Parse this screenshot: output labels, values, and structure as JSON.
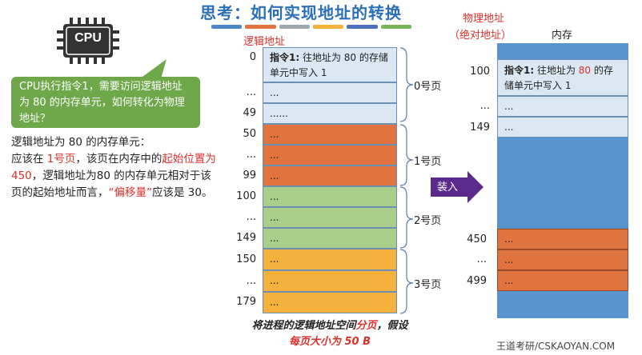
{
  "title": "思考：如何实现地址的转换",
  "title_bar_colors": [
    "#4f86c6",
    "#e0733e",
    "#9fa6ad",
    "#f6b13d",
    "#4f6fbf",
    "#7cb45a"
  ],
  "cpu": {
    "label": "CPU",
    "bubble": "CPU执行指令1，需要访问逻辑地址为 80 的内存单元，如何转化为物理地址？"
  },
  "explanation": {
    "p1": "逻辑地址为 80 的内存单元：",
    "p2a": "应该在 ",
    "page": "1号页",
    "p2b": "，该页在内存中的",
    "start": "起始位置为 450",
    "p3": "，逻辑地址为80 的内存单元相对于该页的起始地址而言，",
    "offset_label": "“偏移量”",
    "p4": "应该是 30。"
  },
  "logical": {
    "header": "逻辑地址",
    "cell0_bold": "指令1:",
    "cell0_text": " 往地址为 80 的存储单元中写入 1",
    "dots": "...",
    "six_dots": "......",
    "row_labels": [
      "0",
      "...",
      "49",
      "50",
      "...",
      "99",
      "100",
      "...",
      "149",
      "150",
      "...",
      "179"
    ],
    "pages": [
      "0号页",
      "1号页",
      "2号页",
      "3号页"
    ]
  },
  "load_label": "装入",
  "physical": {
    "header_line1": "物理地址",
    "header_line2": "（绝对地址）",
    "memory_label": "内存",
    "cell_bold": "指令1:",
    "cell_text_a": " 往地址为 ",
    "cell_text_red": "80",
    "cell_text_b": " 的存储单元中写入 1",
    "dots": "...",
    "row_labels": [
      "100",
      "...",
      "149",
      "450",
      "...",
      "499"
    ]
  },
  "caption": {
    "a": "将进程的逻辑地址空间",
    "red1": "分页",
    "b": "，假设",
    "red2": "每页大小为 50 B"
  },
  "watermark": "王道考研/CSKAOYAN.COM",
  "colors": {
    "orange": "#e0733e",
    "green": "#a9cf8b",
    "yellow": "#f6b13d",
    "light_blue": "#dbe8f4",
    "memory_blue": "#5a94cf",
    "arrow_purple": "#5b2a8c"
  }
}
